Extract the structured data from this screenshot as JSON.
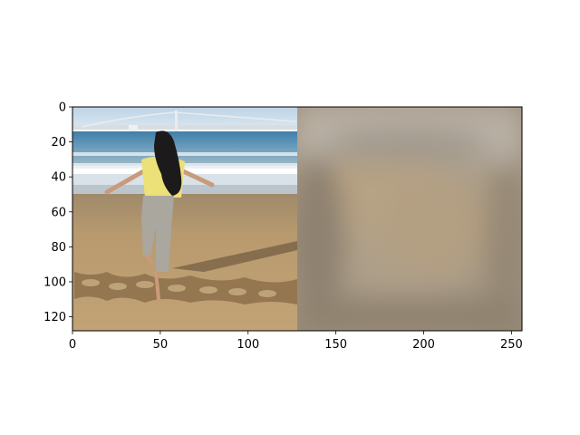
{
  "chart_data": {
    "type": "image",
    "title": "",
    "xlabel": "",
    "ylabel": "",
    "xlim": [
      0,
      256
    ],
    "ylim": [
      128,
      0
    ],
    "xticks": [
      0,
      50,
      100,
      150,
      200,
      250
    ],
    "yticks": [
      0,
      20,
      40,
      60,
      80,
      100,
      120
    ],
    "xtick_labels": [
      "0",
      "50",
      "100",
      "150",
      "200",
      "250"
    ],
    "ytick_labels": [
      "0",
      "20",
      "40",
      "60",
      "80",
      "100",
      "120"
    ],
    "grid": false,
    "panels": [
      {
        "name": "beach-photo",
        "x_range": [
          0,
          128
        ],
        "y_range": [
          0,
          128
        ]
      },
      {
        "name": "blurred-photo",
        "x_range": [
          128,
          256
        ],
        "y_range": [
          0,
          128
        ]
      }
    ]
  },
  "colors": {
    "sky": "#c9dbe9",
    "sea": "#5b8fb0",
    "foam": "#e8eef2",
    "sand": "#b99a6e",
    "sand_dark": "#8d6f4a",
    "shirt": "#efe07a",
    "hair": "#1c1a1c",
    "pants": "#a7a59c",
    "skin": "#c99b7a",
    "blur_light": "#bdb3a4",
    "blur_mid": "#a89b86",
    "blur_dark": "#8f8270",
    "axis": "#000000"
  }
}
